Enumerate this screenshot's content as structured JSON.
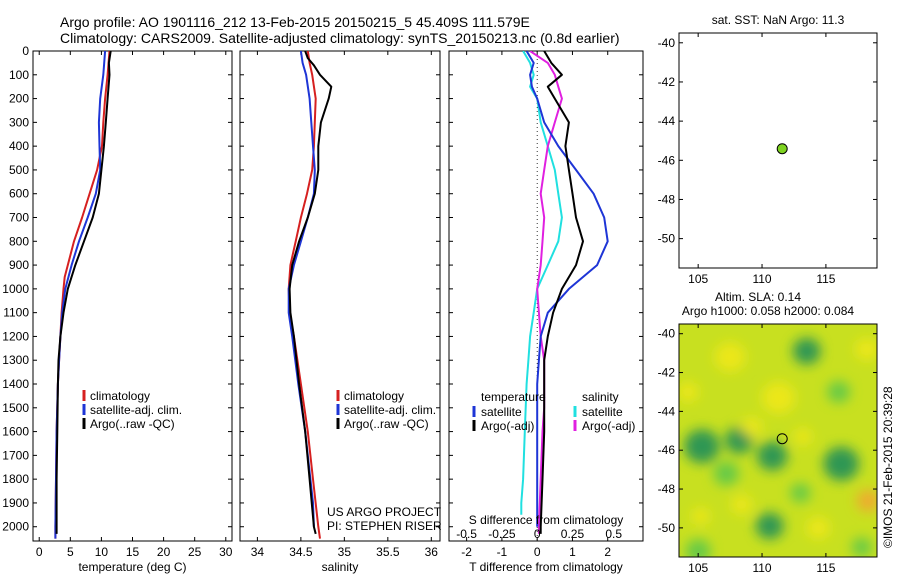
{
  "header": {
    "line1": "Argo profile: AO 1901116_212 13-Feb-2015 20150215_5 45.409S 111.579E",
    "line2": "Climatology: CARS2009. Satellite-adjusted climatology: synTS_20150213.nc (0.8d earlier)"
  },
  "depth_ticks": [
    0,
    100,
    200,
    300,
    400,
    500,
    600,
    700,
    800,
    900,
    1000,
    1100,
    1200,
    1300,
    1400,
    1500,
    1600,
    1700,
    1800,
    1900,
    2000
  ],
  "chart_data": [
    {
      "type": "line",
      "id": "temperature",
      "xlabel": "temperature (deg C)",
      "xlim": [
        -1,
        31
      ],
      "ylim": [
        2060,
        0
      ],
      "xticks": [
        0,
        5,
        10,
        15,
        20,
        25,
        30
      ],
      "legend": [
        "climatology",
        "satellite-adj. clim.",
        "Argo(..raw -QC)"
      ],
      "colors": [
        "#d62020",
        "#1e35d6",
        "#000000"
      ],
      "series": [
        {
          "name": "climatology",
          "depth": [
            0,
            100,
            200,
            300,
            400,
            500,
            600,
            700,
            800,
            900,
            950,
            1000,
            1100,
            1200,
            1300,
            1400,
            1600,
            1800,
            2000,
            2050
          ],
          "values": [
            11.3,
            11.0,
            10.6,
            10.3,
            10.1,
            9.3,
            8.1,
            6.9,
            5.6,
            4.6,
            4.1,
            3.9,
            3.6,
            3.4,
            3.2,
            3.0,
            2.8,
            2.7,
            2.6,
            2.6
          ]
        },
        {
          "name": "satellite-adj. clim.",
          "depth": [
            0,
            100,
            200,
            300,
            400,
            500,
            600,
            700,
            800,
            900,
            1000,
            1100,
            1200,
            1300,
            1400,
            1600,
            1800,
            2000,
            2050
          ],
          "values": [
            10.6,
            10.3,
            9.8,
            9.6,
            9.7,
            9.8,
            9.1,
            7.8,
            6.4,
            5.2,
            4.2,
            3.7,
            3.4,
            3.2,
            3.0,
            2.8,
            2.7,
            2.6,
            2.6
          ]
        },
        {
          "name": "Argo(..raw -QC)",
          "depth": [
            0,
            50,
            100,
            200,
            300,
            400,
            500,
            600,
            700,
            800,
            900,
            1000,
            1100,
            1200,
            1300,
            1400,
            1600,
            1800,
            2000,
            2030
          ],
          "values": [
            11.5,
            11.2,
            11.3,
            11.0,
            10.7,
            10.4,
            10.0,
            9.6,
            8.6,
            7.2,
            5.8,
            4.6,
            3.9,
            3.4,
            3.1,
            3.0,
            2.9,
            2.8,
            2.8,
            2.8
          ]
        }
      ]
    },
    {
      "type": "line",
      "id": "salinity",
      "xlabel": "salinity",
      "xlim": [
        33.8,
        36.1
      ],
      "ylim": [
        2060,
        0
      ],
      "xticks": [
        34,
        34.5,
        35,
        35.5,
        36
      ],
      "legend": [
        "climatology",
        "satellite-adj. clim.",
        "Argo(..raw -QC)"
      ],
      "colors": [
        "#d62020",
        "#1e35d6",
        "#000000"
      ],
      "note": [
        "US ARGO PROJECT",
        "PI: STEPHEN RISER"
      ],
      "series": [
        {
          "name": "climatology",
          "depth": [
            0,
            50,
            100,
            200,
            300,
            400,
            500,
            600,
            700,
            800,
            900,
            1000,
            1100,
            1200,
            1400,
            1600,
            1800,
            2000,
            2050
          ],
          "values": [
            34.58,
            34.6,
            34.63,
            34.67,
            34.66,
            34.65,
            34.63,
            34.57,
            34.5,
            34.44,
            34.38,
            34.36,
            34.37,
            34.42,
            34.5,
            34.58,
            34.64,
            34.7,
            34.72
          ]
        },
        {
          "name": "satellite-adj. clim.",
          "depth": [
            0,
            50,
            100,
            200,
            300,
            400,
            500,
            600,
            700,
            800,
            900,
            1000,
            1100,
            1200,
            1400,
            1600,
            1800,
            1900,
            2000
          ],
          "values": [
            34.5,
            34.52,
            34.56,
            34.6,
            34.62,
            34.64,
            34.66,
            34.65,
            34.58,
            34.5,
            34.42,
            34.36,
            34.36,
            34.4,
            34.47,
            34.55,
            34.61,
            34.64,
            34.65
          ]
        },
        {
          "name": "Argo(..raw -QC)",
          "depth": [
            0,
            30,
            60,
            100,
            150,
            200,
            300,
            400,
            500,
            600,
            700,
            800,
            900,
            1000,
            1100,
            1200,
            1400,
            1600,
            1800,
            2000,
            2030
          ],
          "values": [
            34.55,
            34.58,
            34.65,
            34.72,
            34.85,
            34.82,
            34.73,
            34.7,
            34.7,
            34.66,
            34.58,
            34.48,
            34.4,
            34.37,
            34.38,
            34.42,
            34.48,
            34.55,
            34.6,
            34.65,
            34.67
          ]
        }
      ]
    },
    {
      "type": "line",
      "id": "difference",
      "xlabel": "T difference from climatology",
      "xlabel2": "S difference from climatology",
      "xlim": [
        -2.5,
        3.0
      ],
      "ylim": [
        2060,
        0
      ],
      "xticks": [
        -2,
        -1,
        0,
        1,
        2
      ],
      "xticks2_labels": [
        "-0.5",
        "-0.25",
        "0",
        "0.25",
        "0.5"
      ],
      "xticks2_values": [
        -2,
        -1,
        0,
        1,
        2
      ],
      "legend_titles": [
        "temperature",
        "salinity"
      ],
      "legend_left": [
        "satellite",
        "Argo(-adj)"
      ],
      "legend_right": [
        "satellite",
        "Argo(-adj)"
      ],
      "colors": [
        "#1e35d6",
        "#000000",
        "#20e0e0",
        "#e020e0"
      ],
      "series": [
        {
          "name": "temperature satellite",
          "depth": [
            0,
            50,
            100,
            150,
            200,
            300,
            400,
            500,
            600,
            700,
            800,
            900,
            1000,
            1100,
            1200,
            1300,
            1400,
            1600,
            1800,
            2000
          ],
          "values": [
            -0.3,
            -0.1,
            -0.2,
            -0.15,
            0.0,
            0.2,
            0.6,
            1.1,
            1.6,
            1.9,
            2.0,
            1.7,
            0.9,
            0.3,
            0.1,
            0.05,
            0.0,
            0.0,
            0.0,
            0.0
          ]
        },
        {
          "name": "temperature Argo(-adj)",
          "depth": [
            0,
            50,
            100,
            150,
            200,
            300,
            400,
            500,
            600,
            700,
            800,
            900,
            1000,
            1100,
            1200,
            1300,
            1400,
            1500,
            1600,
            1800,
            2000,
            2030
          ],
          "values": [
            0.2,
            0.4,
            0.7,
            0.3,
            0.5,
            0.9,
            0.8,
            0.9,
            1.0,
            1.1,
            1.3,
            1.1,
            0.7,
            0.45,
            0.3,
            0.2,
            0.2,
            0.2,
            0.2,
            0.15,
            0.1,
            0.1
          ]
        },
        {
          "name": "salinity satellite",
          "depth": [
            0,
            50,
            100,
            150,
            200,
            300,
            400,
            500,
            600,
            700,
            800,
            900,
            1000,
            1100,
            1200,
            1300,
            1400,
            1600,
            1800,
            1900,
            1950
          ],
          "values": [
            -0.4,
            -0.2,
            -0.1,
            -0.2,
            0.0,
            0.1,
            0.3,
            0.5,
            0.6,
            0.7,
            0.6,
            0.3,
            0.0,
            -0.1,
            -0.2,
            -0.25,
            -0.3,
            -0.35,
            -0.4,
            -0.45,
            -0.45
          ]
        },
        {
          "name": "salinity Argo(-adj)",
          "depth": [
            0,
            50,
            100,
            150,
            200,
            300,
            400,
            500,
            600,
            700,
            800,
            900,
            1000,
            1100,
            1200,
            1300,
            1400,
            1500,
            1600,
            1800,
            2000,
            2030
          ],
          "values": [
            -0.2,
            0.3,
            0.5,
            0.6,
            0.7,
            0.5,
            0.3,
            0.2,
            0.1,
            0.2,
            0.15,
            0.1,
            0.0,
            0.05,
            0.1,
            0.2,
            0.2,
            0.2,
            0.15,
            0.1,
            0.05,
            0.05
          ]
        }
      ]
    },
    {
      "type": "scatter",
      "id": "sst-map",
      "title": "sat. SST: NaN Argo: 11.3",
      "xlim": [
        103.5,
        119
      ],
      "ylim": [
        -51.5,
        -39.5
      ],
      "xticks": [
        105,
        110,
        115
      ],
      "yticks": [
        -40,
        -42,
        -44,
        -46,
        -48,
        -50
      ],
      "point": {
        "lon": 111.579,
        "lat": -45.409,
        "color": "#7ed321"
      }
    },
    {
      "type": "heatmap",
      "id": "sla-map",
      "title1": "Altim. SLA: 0.14",
      "title2": "Argo h1000: 0.058 h2000: 0.084",
      "xlim": [
        103.5,
        119
      ],
      "ylim": [
        -51.5,
        -39.5
      ],
      "xticks": [
        105,
        110,
        115
      ],
      "yticks": [
        -40,
        -42,
        -44,
        -46,
        -48,
        -50
      ],
      "point": {
        "lon": 111.579,
        "lat": -45.409
      },
      "colors": [
        "#1f8f5a",
        "#5cc84a",
        "#c8e020",
        "#f0e818",
        "#f2a630"
      ],
      "blobs": [
        {
          "lon": 105.3,
          "lat": -45.8,
          "r": 1.4,
          "v": -1
        },
        {
          "lon": 108.2,
          "lat": -45.5,
          "r": 1.1,
          "v": -1
        },
        {
          "lon": 107.2,
          "lat": -47.2,
          "r": 1.0,
          "v": -0.8
        },
        {
          "lon": 110.8,
          "lat": -46.3,
          "r": 1.2,
          "v": -1
        },
        {
          "lon": 116.2,
          "lat": -46.7,
          "r": 1.4,
          "v": -1
        },
        {
          "lon": 113.5,
          "lat": -40.9,
          "r": 1.1,
          "v": -0.9
        },
        {
          "lon": 116.0,
          "lat": -43.0,
          "r": 0.9,
          "v": -0.8
        },
        {
          "lon": 110.6,
          "lat": -49.9,
          "r": 1.1,
          "v": -0.9
        },
        {
          "lon": 105.0,
          "lat": -51.2,
          "r": 1.0,
          "v": -0.7
        },
        {
          "lon": 117.8,
          "lat": -51.0,
          "r": 0.8,
          "v": -0.8
        },
        {
          "lon": 113.0,
          "lat": -48.2,
          "r": 0.8,
          "v": -0.7
        },
        {
          "lon": 107.5,
          "lat": -41.2,
          "r": 1.2,
          "v": 0.8
        },
        {
          "lon": 111.3,
          "lat": -43.3,
          "r": 1.3,
          "v": 0.9
        },
        {
          "lon": 118.3,
          "lat": -48.6,
          "r": 0.9,
          "v": 1.3
        },
        {
          "lon": 109.2,
          "lat": -44.8,
          "r": 0.8,
          "v": 0.7
        },
        {
          "lon": 113.2,
          "lat": -45.3,
          "r": 0.7,
          "v": 0.6
        },
        {
          "lon": 118.2,
          "lat": -40.8,
          "r": 0.9,
          "v": 0.7
        },
        {
          "lon": 104.2,
          "lat": -43.0,
          "r": 0.8,
          "v": 0.6
        },
        {
          "lon": 108.4,
          "lat": -48.8,
          "r": 0.8,
          "v": 0.7
        },
        {
          "lon": 114.4,
          "lat": -50.0,
          "r": 0.9,
          "v": 0.7
        },
        {
          "lon": 105.2,
          "lat": -49.4,
          "r": 0.7,
          "v": 0.6
        }
      ]
    }
  ],
  "side_label": "©IMOS 21-Feb-2015 20:39:28"
}
